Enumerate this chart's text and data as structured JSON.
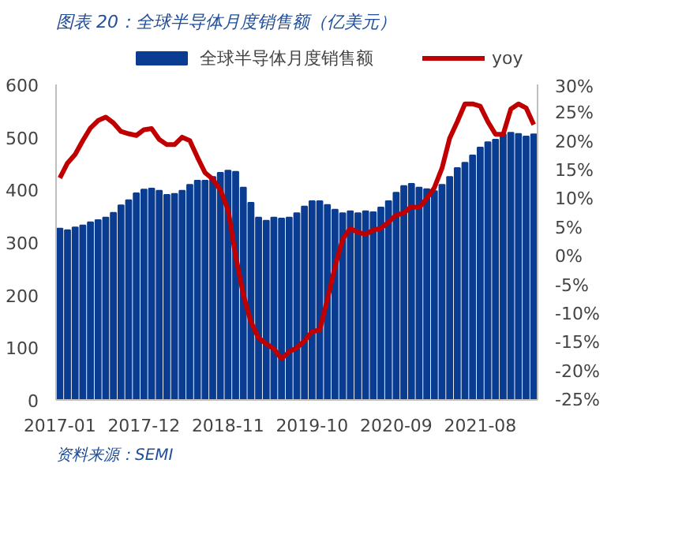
{
  "chart_data": {
    "type": "bar",
    "title": "图表 20：全球半导体月度销售额（亿美元）",
    "categories": [
      "2017-01",
      null,
      null,
      null,
      null,
      null,
      null,
      null,
      null,
      null,
      null,
      "2017-12",
      null,
      null,
      null,
      null,
      null,
      null,
      null,
      null,
      null,
      null,
      "2018-11",
      null,
      null,
      null,
      null,
      null,
      null,
      null,
      null,
      null,
      null,
      "2019-10",
      null,
      null,
      null,
      null,
      null,
      null,
      null,
      null,
      null,
      null,
      "2020-09",
      null,
      null,
      null,
      null,
      null,
      null,
      null,
      null,
      null,
      null,
      "2021-08",
      null,
      null,
      null,
      null,
      null,
      null,
      null
    ],
    "series": [
      {
        "name": "全球半导体月度销售额",
        "color": "#0a3d91",
        "values": [
          326,
          323,
          328,
          332,
          338,
          342,
          347,
          356,
          370,
          380,
          393,
          400,
          402,
          398,
          390,
          392,
          398,
          409,
          417,
          417,
          424,
          432,
          436,
          434,
          404,
          375,
          347,
          341,
          347,
          345,
          347,
          355,
          368,
          378,
          378,
          371,
          362,
          355,
          359,
          355,
          359,
          357,
          366,
          378,
          394,
          407,
          411,
          404,
          401,
          397,
          409,
          424,
          441,
          451,
          465,
          480,
          490,
          495,
          505,
          508,
          506,
          501,
          505
        ]
      },
      {
        "name": "yoy",
        "type": "line",
        "axis": "y2",
        "color": "#c00000",
        "values": [
          13.7,
          16.3,
          17.8,
          20.2,
          22.4,
          23.7,
          24.3,
          23.3,
          21.8,
          21.4,
          21.1,
          22.1,
          22.3,
          20.4,
          19.5,
          19.5,
          20.8,
          20.2,
          17.3,
          14.6,
          13.5,
          11.6,
          8.2,
          0.1,
          -6.6,
          -11.4,
          -14.2,
          -15.2,
          -16.1,
          -17.8,
          -16.6,
          -15.9,
          -14.7,
          -13.1,
          -12.8,
          -7.5,
          -1.8,
          3.0,
          4.9,
          4.2,
          3.9,
          4.6,
          4.9,
          6.0,
          7.2,
          7.6,
          8.7,
          8.5,
          10.1,
          12.0,
          15.4,
          20.6,
          23.5,
          26.6,
          26.6,
          26.2,
          23.5,
          21.3,
          21.3,
          25.7,
          26.6,
          25.9,
          23.0
        ]
      }
    ],
    "ylim": [
      0,
      600
    ],
    "yticks": [
      0,
      100,
      200,
      300,
      400,
      500,
      600
    ],
    "y2lim": [
      -25,
      30
    ],
    "y2ticks": [
      {
        "value": -25,
        "label": "-25%"
      },
      {
        "value": -20,
        "label": "-20%"
      },
      {
        "value": -15,
        "label": "-15%"
      },
      {
        "value": -10,
        "label": "-10%"
      },
      {
        "value": -5,
        "label": "-5%"
      },
      {
        "value": 0,
        "label": "0%"
      },
      {
        "value": 5,
        "label": "5%"
      },
      {
        "value": 10,
        "label": "10%"
      },
      {
        "value": 15,
        "label": "15%"
      },
      {
        "value": 20,
        "label": "20%"
      },
      {
        "value": 25,
        "label": "25%"
      },
      {
        "value": 30,
        "label": "30%"
      }
    ],
    "legend": "top",
    "grid": false,
    "annotations": [
      "资料来源：SEMI"
    ]
  }
}
